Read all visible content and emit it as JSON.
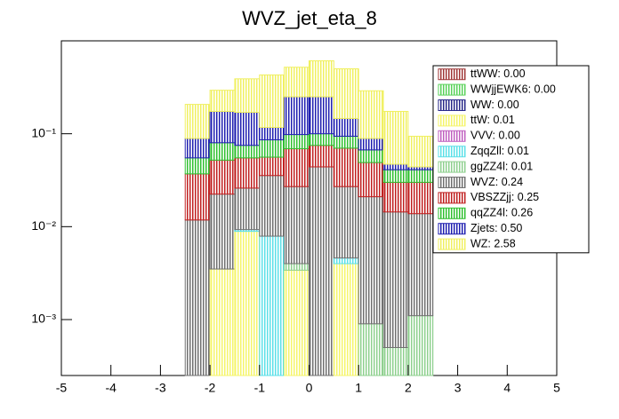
{
  "chart_data": {
    "type": "stacked-histogram",
    "title": "WVZ_jet_eta_8",
    "bins": [
      -2.5,
      -2,
      -1.5,
      -1,
      -0.5,
      0,
      0.5,
      1,
      1.5,
      2,
      2.5
    ],
    "xlim": [
      -5,
      5
    ],
    "xticks": [
      -5,
      -4,
      -3,
      -2,
      -1,
      0,
      1,
      2,
      3,
      4,
      5
    ],
    "ylim": [
      0.00025,
      1
    ],
    "log_y": true,
    "yticks": [
      {
        "value": 0.001,
        "label": "10⁻³"
      },
      {
        "value": 0.01,
        "label": "10⁻²"
      },
      {
        "value": 0.1,
        "label": "10⁻¹"
      }
    ],
    "series": [
      {
        "name": "ttWW: 0.00",
        "color": "#a03838",
        "values": [
          0,
          0,
          0,
          0,
          0,
          0,
          0,
          0,
          0,
          0
        ]
      },
      {
        "name": "WWjjEWK6: 0.00",
        "color": "#5ad25a",
        "values": [
          0,
          0,
          0,
          0,
          0,
          0,
          0,
          0,
          0,
          0
        ]
      },
      {
        "name": "WW: 0.00",
        "color": "#2a2a8a",
        "values": [
          0,
          0,
          0,
          0,
          0,
          0,
          0,
          0,
          0,
          0
        ]
      },
      {
        "name": "ttW: 0.01",
        "color": "#f5f56a",
        "values": [
          0,
          0.0035,
          0.0089,
          0,
          0.0034,
          0,
          0.004,
          0,
          0,
          0
        ]
      },
      {
        "name": "VVV: 0.00",
        "color": "#c060c0",
        "values": [
          0,
          0,
          0,
          0,
          0,
          0,
          0,
          0,
          0,
          0
        ]
      },
      {
        "name": "ZqqZll: 0.01",
        "color": "#5ce0e8",
        "values": [
          0,
          0,
          0.0004,
          0.0079,
          0,
          0,
          0.0006,
          0,
          0,
          0
        ]
      },
      {
        "name": "ggZZ4l: 0.01",
        "color": "#8fd08f",
        "values": [
          0,
          0,
          0,
          0,
          0.0006,
          0,
          0,
          0.0009,
          0.0005,
          0.0011
        ]
      },
      {
        "name": "WVZ: 0.24",
        "color": "#707070",
        "values": [
          0.0118,
          0.0189,
          0.0167,
          0.0276,
          0.023,
          0.044,
          0.0224,
          0.0201,
          0.0139,
          0.0127
        ]
      },
      {
        "name": "VBSZZjj: 0.25",
        "color": "#c02020",
        "values": [
          0.0252,
          0.0296,
          0.029,
          0.0205,
          0.042,
          0.031,
          0.043,
          0.028,
          0.0156,
          0.0162
        ]
      },
      {
        "name": "qqZZ4l: 0.26",
        "color": "#30c030",
        "values": [
          0.018,
          0.028,
          0.02,
          0.03,
          0.029,
          0.025,
          0.024,
          0.018,
          0.011,
          0.011
        ]
      },
      {
        "name": "Zjets: 0.50",
        "color": "#2020b0",
        "values": [
          0.034,
          0.094,
          0.095,
          0.031,
          0.152,
          0.15,
          0.052,
          0.022,
          0.006,
          0.003
        ]
      },
      {
        "name": "WZ: 2.58",
        "color": "#f0f060",
        "values": [
          0.118,
          0.12,
          0.22,
          0.313,
          0.27,
          0.36,
          0.354,
          0.201,
          0.127,
          0.05
        ]
      }
    ]
  }
}
